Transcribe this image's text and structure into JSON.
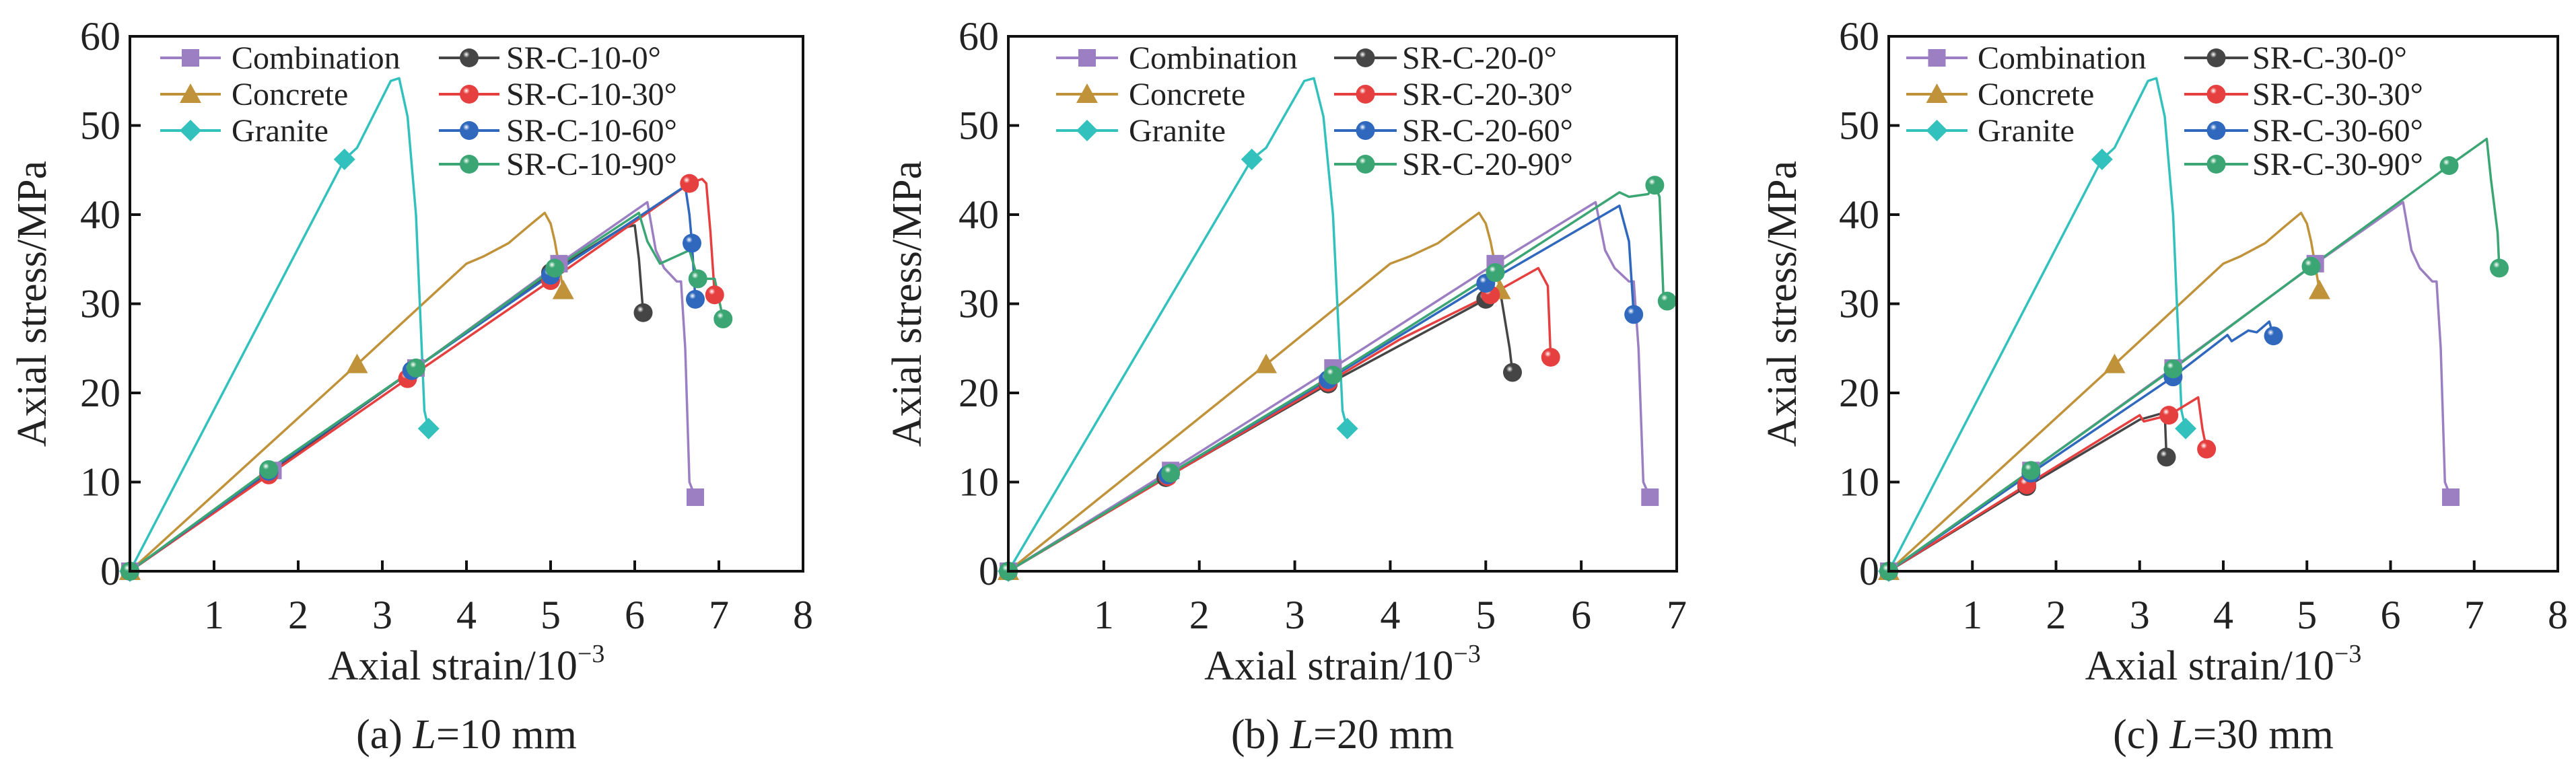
{
  "colors": {
    "Combination": "#9b7fc2",
    "Concrete": "#c0923a",
    "Granite": "#33c1bd",
    "deg0": "#454545",
    "deg30": "#e5403f",
    "deg60": "#2f68bd",
    "deg90": "#3ba673"
  },
  "chart_data": [
    {
      "type": "line",
      "caption_prefix": "(a) ",
      "caption_var": "L",
      "caption_suffix": "=10 mm",
      "xlabel": "Axial strain/10",
      "xlabel_sup": "−3",
      "ylabel": "Axial stress/MPa",
      "xlim": [
        0,
        8
      ],
      "ylim": [
        0,
        60
      ],
      "xticks": [
        "1",
        "2",
        "3",
        "4",
        "5",
        "6",
        "7",
        "8"
      ],
      "yticks": [
        "0",
        "10",
        "20",
        "30",
        "40",
        "50",
        "60"
      ],
      "legend_position": "top-left",
      "series": [
        {
          "name": "Combination",
          "marker": "square",
          "color_key": "Combination",
          "x": [
            0,
            1.7,
            3.4,
            5.1,
            6.15,
            6.25,
            6.35,
            6.5,
            6.55,
            6.6,
            6.65,
            6.72
          ],
          "y": [
            0,
            11.3,
            22.8,
            34.5,
            41.4,
            36,
            34,
            32.5,
            32.5,
            25,
            10,
            8.3
          ],
          "markers": [
            0,
            1,
            2,
            3,
            11
          ]
        },
        {
          "name": "Concrete",
          "marker": "triangle",
          "color_key": "Concrete",
          "x": [
            0,
            2.7,
            4.0,
            4.2,
            4.5,
            4.75,
            4.93,
            5.0,
            5.05,
            5.15
          ],
          "y": [
            0,
            23.2,
            34.5,
            35.3,
            36.8,
            38.8,
            40.2,
            39,
            37,
            31.5
          ],
          "markers": [
            0,
            1,
            9
          ]
        },
        {
          "name": "Granite",
          "marker": "diamond",
          "color_key": "Granite",
          "x": [
            0,
            2.55,
            2.7,
            3.1,
            3.2,
            3.3,
            3.4,
            3.5,
            3.55
          ],
          "y": [
            0,
            46.2,
            47.5,
            55,
            55.3,
            51,
            40,
            18,
            16
          ],
          "markers": [
            0,
            1,
            8
          ]
        },
        {
          "name": "SR-C-10-0°",
          "marker": "sphere",
          "color_key": "deg0",
          "x": [
            0,
            1.65,
            3.35,
            5.0,
            5.85,
            6.0,
            6.05,
            6.1
          ],
          "y": [
            0,
            11,
            22.5,
            33.5,
            38.5,
            38.8,
            35,
            29
          ],
          "markers": [
            0,
            1,
            2,
            3,
            7
          ]
        },
        {
          "name": "SR-C-10-30°",
          "marker": "sphere",
          "color_key": "deg30",
          "x": [
            0,
            1.65,
            3.3,
            5.0,
            6.65,
            6.8,
            6.85,
            6.9,
            6.95
          ],
          "y": [
            0,
            10.8,
            21.6,
            32.6,
            43.5,
            44,
            43.5,
            38,
            31
          ],
          "markers": [
            0,
            1,
            2,
            3,
            4,
            8
          ]
        },
        {
          "name": "SR-C-10-60°",
          "marker": "sphere",
          "color_key": "deg60",
          "x": [
            0,
            1.65,
            3.35,
            5.0,
            6.6,
            6.65,
            6.68,
            6.72
          ],
          "y": [
            0,
            11.2,
            22.5,
            33.2,
            43.2,
            40,
            36.8,
            30.5
          ],
          "markers": [
            0,
            1,
            2,
            3,
            6,
            7
          ]
        },
        {
          "name": "SR-C-10-90°",
          "marker": "sphere",
          "color_key": "deg90",
          "x": [
            0,
            1.65,
            3.4,
            5.05,
            6.05,
            6.15,
            6.3,
            6.65,
            6.75,
            6.95,
            7.05
          ],
          "y": [
            0,
            11.4,
            22.8,
            34,
            40.2,
            37,
            34.5,
            36,
            32.8,
            32.8,
            28.3
          ],
          "markers": [
            0,
            1,
            2,
            3,
            8,
            10
          ]
        }
      ]
    },
    {
      "type": "line",
      "caption_prefix": "(b) ",
      "caption_var": "L",
      "caption_suffix": "=20 mm",
      "xlabel": "Axial strain/10",
      "xlabel_sup": "−3",
      "ylabel": "Axial stress/MPa",
      "xlim": [
        0,
        7
      ],
      "ylim": [
        0,
        60
      ],
      "xticks": [
        "1",
        "2",
        "3",
        "4",
        "5",
        "6",
        "7"
      ],
      "yticks": [
        "0",
        "10",
        "20",
        "30",
        "40",
        "50",
        "60"
      ],
      "legend_position": "top-left",
      "series": [
        {
          "name": "Combination",
          "marker": "square",
          "color_key": "Combination",
          "x": [
            0,
            1.7,
            3.4,
            5.1,
            6.15,
            6.25,
            6.35,
            6.5,
            6.55,
            6.6,
            6.65,
            6.72
          ],
          "y": [
            0,
            11.3,
            22.8,
            34.5,
            41.4,
            36,
            34,
            32.5,
            32.5,
            25,
            10,
            8.3
          ],
          "markers": [
            0,
            1,
            2,
            3,
            11
          ]
        },
        {
          "name": "Concrete",
          "marker": "triangle",
          "color_key": "Concrete",
          "x": [
            0,
            2.7,
            4.0,
            4.2,
            4.5,
            4.75,
            4.93,
            5.0,
            5.05,
            5.15
          ],
          "y": [
            0,
            23.2,
            34.5,
            35.3,
            36.8,
            38.8,
            40.2,
            39,
            37,
            31.5
          ],
          "markers": [
            0,
            1,
            9
          ]
        },
        {
          "name": "Granite",
          "marker": "diamond",
          "color_key": "Granite",
          "x": [
            0,
            2.55,
            2.7,
            3.1,
            3.2,
            3.3,
            3.4,
            3.5,
            3.55
          ],
          "y": [
            0,
            46.2,
            47.5,
            55,
            55.3,
            51,
            40,
            18,
            16
          ],
          "markers": [
            0,
            1,
            8
          ]
        },
        {
          "name": "SR-C-20-0°",
          "marker": "sphere",
          "color_key": "deg0",
          "x": [
            0,
            1.65,
            3.35,
            5.0,
            5.15,
            5.25,
            5.28
          ],
          "y": [
            0,
            10.5,
            21,
            30.5,
            31.5,
            25,
            22.3
          ],
          "markers": [
            0,
            1,
            2,
            3,
            6
          ]
        },
        {
          "name": "SR-C-20-30°",
          "marker": "sphere",
          "color_key": "deg30",
          "x": [
            0,
            1.67,
            3.35,
            4.1,
            5.05,
            5.55,
            5.65,
            5.68
          ],
          "y": [
            0,
            10.6,
            21.2,
            26,
            31,
            34,
            32,
            24
          ],
          "markers": [
            0,
            1,
            2,
            4,
            7
          ]
        },
        {
          "name": "SR-C-20-60°",
          "marker": "sphere",
          "color_key": "deg60",
          "x": [
            0,
            1.67,
            3.35,
            5.0,
            6.4,
            6.5,
            6.55
          ],
          "y": [
            0,
            10.8,
            21.5,
            32.3,
            41,
            37,
            28.8
          ],
          "markers": [
            0,
            1,
            2,
            3,
            6
          ]
        },
        {
          "name": "SR-C-20-90°",
          "marker": "sphere",
          "color_key": "deg90",
          "x": [
            0,
            1.7,
            3.4,
            5.1,
            6.4,
            6.5,
            6.7,
            6.77,
            6.82,
            6.86,
            6.9
          ],
          "y": [
            0,
            11,
            22,
            33.5,
            42.5,
            42,
            42.3,
            43.3,
            42,
            31,
            30.3
          ],
          "markers": [
            0,
            1,
            2,
            3,
            7,
            10
          ]
        }
      ]
    },
    {
      "type": "line",
      "caption_prefix": "(c) ",
      "caption_var": "L",
      "caption_suffix": "=30 mm",
      "xlabel": "Axial strain/10",
      "xlabel_sup": "−3",
      "ylabel": "Axial stress/MPa",
      "xlim": [
        0,
        8
      ],
      "ylim": [
        0,
        60
      ],
      "xticks": [
        "1",
        "2",
        "3",
        "4",
        "5",
        "6",
        "7",
        "8"
      ],
      "yticks": [
        "0",
        "10",
        "20",
        "30",
        "40",
        "50",
        "60"
      ],
      "legend_position": "top-left",
      "series": [
        {
          "name": "Combination",
          "marker": "square",
          "color_key": "Combination",
          "x": [
            0,
            1.7,
            3.4,
            5.1,
            6.15,
            6.25,
            6.35,
            6.5,
            6.55,
            6.6,
            6.65,
            6.72
          ],
          "y": [
            0,
            11.3,
            22.8,
            34.5,
            41.4,
            36,
            34,
            32.5,
            32.5,
            25,
            10,
            8.3
          ],
          "markers": [
            0,
            1,
            2,
            3,
            11
          ]
        },
        {
          "name": "Concrete",
          "marker": "triangle",
          "color_key": "Concrete",
          "x": [
            0,
            2.7,
            4.0,
            4.2,
            4.5,
            4.75,
            4.93,
            5.0,
            5.05,
            5.15
          ],
          "y": [
            0,
            23.2,
            34.5,
            35.3,
            36.8,
            38.8,
            40.2,
            39,
            37,
            31.5
          ],
          "markers": [
            0,
            1,
            9
          ]
        },
        {
          "name": "Granite",
          "marker": "diamond",
          "color_key": "Granite",
          "x": [
            0,
            2.55,
            2.7,
            3.1,
            3.2,
            3.3,
            3.4,
            3.5,
            3.55
          ],
          "y": [
            0,
            46.2,
            47.5,
            55,
            55.3,
            51,
            40,
            18,
            16
          ],
          "markers": [
            0,
            1,
            8
          ]
        },
        {
          "name": "SR-C-30-0°",
          "marker": "sphere",
          "color_key": "deg0",
          "x": [
            0,
            1.65,
            3.0,
            3.3,
            3.32,
            3.32
          ],
          "y": [
            0,
            9.5,
            17,
            17.8,
            13,
            12.8
          ],
          "markers": [
            0,
            1,
            5
          ]
        },
        {
          "name": "SR-C-30-30°",
          "marker": "sphere",
          "color_key": "deg30",
          "x": [
            0,
            1.65,
            3.0,
            3.05,
            3.35,
            3.7,
            3.75,
            3.8
          ],
          "y": [
            0,
            9.7,
            17.5,
            16.8,
            17.5,
            19.5,
            16,
            13.7
          ],
          "markers": [
            0,
            1,
            4,
            7
          ]
        },
        {
          "name": "SR-C-30-60°",
          "marker": "sphere",
          "color_key": "deg60",
          "x": [
            0,
            1.7,
            3.4,
            4.05,
            4.1,
            4.3,
            4.4,
            4.55,
            4.6
          ],
          "y": [
            0,
            11,
            21.8,
            26.5,
            25.8,
            27,
            26.8,
            28,
            26.4
          ],
          "markers": [
            0,
            1,
            2,
            8
          ]
        },
        {
          "name": "SR-C-30-90°",
          "marker": "sphere",
          "color_key": "deg90",
          "x": [
            0,
            1.7,
            3.4,
            5.05,
            6.7,
            7.15,
            7.2,
            7.28,
            7.3
          ],
          "y": [
            0,
            11.3,
            22.7,
            34.2,
            45.5,
            48.5,
            44,
            38,
            34
          ],
          "markers": [
            0,
            1,
            2,
            3,
            4,
            8
          ]
        }
      ]
    }
  ]
}
